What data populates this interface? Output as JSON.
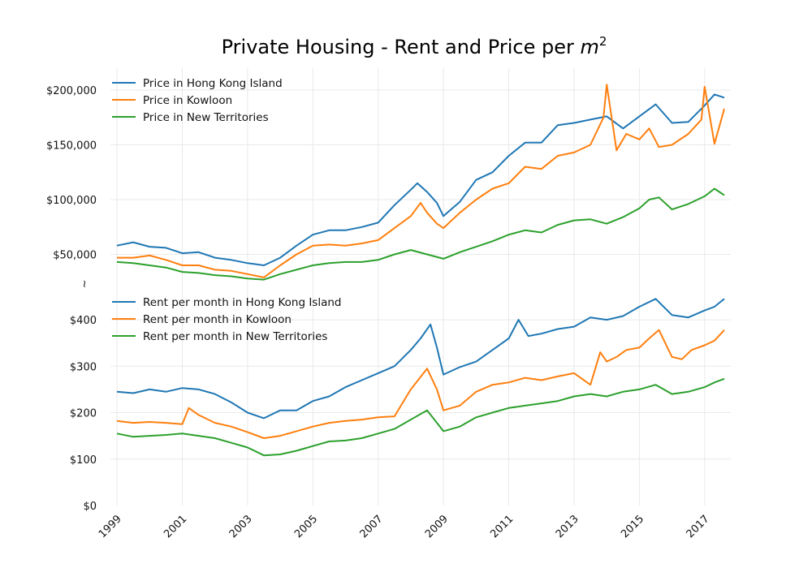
{
  "chart_data": {
    "type": "line",
    "title": "Private Housing - Rent and Price per m²",
    "title_main": "Private Housing - Rent and Price per ",
    "title_var": "m",
    "title_sup": "2",
    "axis_break_symbol": "≀",
    "xlim": [
      1998.8,
      2017.8
    ],
    "x_ticks": [
      {
        "value": 1999,
        "label": "1999"
      },
      {
        "value": 2001,
        "label": "2001"
      },
      {
        "value": 2003,
        "label": "2003"
      },
      {
        "value": 2005,
        "label": "2005"
      },
      {
        "value": 2007,
        "label": "2007"
      },
      {
        "value": 2009,
        "label": "2009"
      },
      {
        "value": 2011,
        "label": "2011"
      },
      {
        "value": 2013,
        "label": "2013"
      },
      {
        "value": 2015,
        "label": "2015"
      },
      {
        "value": 2017,
        "label": "2017"
      }
    ],
    "grid": true,
    "panels": [
      {
        "name": "price",
        "ylim": [
          20000,
          220000
        ],
        "y_ticks": [
          {
            "value": 50000,
            "label": "$50,000"
          },
          {
            "value": 100000,
            "label": "$100,000"
          },
          {
            "value": 150000,
            "label": "$150,000"
          },
          {
            "value": 200000,
            "label": "$200,000"
          }
        ],
        "legend_position": "top-left",
        "series": [
          {
            "name": "Price in Hong Kong Island",
            "color": "#1f77b4",
            "x": [
              1999.0,
              1999.5,
              2000.0,
              2000.5,
              2001.0,
              2001.5,
              2002.0,
              2002.5,
              2003.0,
              2003.5,
              2004.0,
              2004.5,
              2005.0,
              2005.5,
              2006.0,
              2006.5,
              2007.0,
              2007.5,
              2008.0,
              2008.2,
              2008.5,
              2008.8,
              2009.0,
              2009.5,
              2010.0,
              2010.5,
              2011.0,
              2011.5,
              2012.0,
              2012.5,
              2013.0,
              2013.5,
              2014.0,
              2014.5,
              2015.0,
              2015.5,
              2016.0,
              2016.5,
              2017.0,
              2017.3,
              2017.6
            ],
            "y": [
              58000,
              61000,
              57000,
              56000,
              51000,
              52000,
              47000,
              45000,
              42000,
              40000,
              47000,
              58000,
              68000,
              72000,
              72000,
              75000,
              79000,
              95000,
              109000,
              115000,
              107000,
              97000,
              85000,
              98000,
              118000,
              125000,
              140000,
              152000,
              152000,
              168000,
              170000,
              173000,
              176000,
              165000,
              176000,
              187000,
              170000,
              171000,
              186000,
              196000,
              193000
            ]
          },
          {
            "name": "Price in Kowloon",
            "color": "#ff7f0e",
            "x": [
              1999.0,
              1999.5,
              2000.0,
              2000.5,
              2001.0,
              2001.5,
              2002.0,
              2002.5,
              2003.0,
              2003.5,
              2004.0,
              2004.5,
              2005.0,
              2005.5,
              2006.0,
              2006.5,
              2007.0,
              2007.5,
              2008.0,
              2008.3,
              2008.5,
              2008.8,
              2009.0,
              2009.5,
              2010.0,
              2010.5,
              2011.0,
              2011.5,
              2012.0,
              2012.5,
              2013.0,
              2013.5,
              2013.9,
              2014.0,
              2014.3,
              2014.6,
              2015.0,
              2015.3,
              2015.6,
              2016.0,
              2016.5,
              2016.9,
              2017.0,
              2017.3,
              2017.6
            ],
            "y": [
              47000,
              47000,
              49000,
              45000,
              40000,
              40000,
              36000,
              35000,
              32000,
              29000,
              40000,
              50000,
              58000,
              59000,
              58000,
              60000,
              63000,
              74000,
              85000,
              97000,
              88000,
              78000,
              74000,
              88000,
              100000,
              110000,
              115000,
              130000,
              128000,
              140000,
              143000,
              150000,
              175000,
              205000,
              145000,
              160000,
              155000,
              165000,
              148000,
              150000,
              160000,
              173000,
              203000,
              151000,
              183000
            ]
          },
          {
            "name": "Price in New Territories",
            "color": "#2ca02c",
            "x": [
              1999.0,
              1999.5,
              2000.0,
              2000.5,
              2001.0,
              2001.5,
              2002.0,
              2002.5,
              2003.0,
              2003.5,
              2004.0,
              2004.5,
              2005.0,
              2005.5,
              2006.0,
              2006.5,
              2007.0,
              2007.5,
              2008.0,
              2008.5,
              2009.0,
              2009.5,
              2010.0,
              2010.5,
              2011.0,
              2011.5,
              2012.0,
              2012.5,
              2013.0,
              2013.5,
              2014.0,
              2014.5,
              2015.0,
              2015.3,
              2015.6,
              2016.0,
              2016.5,
              2017.0,
              2017.3,
              2017.6
            ],
            "y": [
              43000,
              42000,
              40000,
              38000,
              34000,
              33000,
              31000,
              30000,
              28000,
              27000,
              32000,
              36000,
              40000,
              42000,
              43000,
              43000,
              45000,
              50000,
              54000,
              50000,
              46000,
              52000,
              57000,
              62000,
              68000,
              72000,
              70000,
              77000,
              81000,
              82000,
              78000,
              84000,
              92000,
              100000,
              102000,
              91000,
              96000,
              103000,
              110000,
              104000
            ]
          }
        ]
      },
      {
        "name": "rent",
        "ylim": [
          0,
          470
        ],
        "y_ticks": [
          {
            "value": 0,
            "label": "$0"
          },
          {
            "value": 100,
            "label": "$100"
          },
          {
            "value": 200,
            "label": "$200"
          },
          {
            "value": 300,
            "label": "$300"
          },
          {
            "value": 400,
            "label": "$400"
          }
        ],
        "legend_position": "top-left",
        "series": [
          {
            "name": "Rent per month in Hong Kong Island",
            "color": "#1f77b4",
            "x": [
              1999.0,
              1999.5,
              2000.0,
              2000.5,
              2001.0,
              2001.5,
              2002.0,
              2002.5,
              2003.0,
              2003.5,
              2004.0,
              2004.5,
              2005.0,
              2005.5,
              2006.0,
              2006.5,
              2007.0,
              2007.5,
              2008.0,
              2008.3,
              2008.6,
              2008.8,
              2009.0,
              2009.5,
              2010.0,
              2010.5,
              2011.0,
              2011.3,
              2011.6,
              2012.0,
              2012.5,
              2013.0,
              2013.5,
              2014.0,
              2014.5,
              2015.0,
              2015.5,
              2016.0,
              2016.5,
              2017.0,
              2017.3,
              2017.6
            ],
            "y": [
              245,
              242,
              250,
              245,
              253,
              250,
              240,
              222,
              200,
              188,
              205,
              205,
              225,
              235,
              255,
              270,
              285,
              300,
              335,
              360,
              390,
              340,
              282,
              298,
              310,
              335,
              360,
              400,
              365,
              370,
              380,
              385,
              405,
              400,
              408,
              428,
              445,
              410,
              405,
              420,
              428,
              445
            ]
          },
          {
            "name": "Rent per month in Kowloon",
            "color": "#ff7f0e",
            "x": [
              1999.0,
              1999.5,
              2000.0,
              2000.5,
              2001.0,
              2001.2,
              2001.5,
              2002.0,
              2002.5,
              2003.0,
              2003.5,
              2004.0,
              2004.5,
              2005.0,
              2005.5,
              2006.0,
              2006.5,
              2007.0,
              2007.5,
              2008.0,
              2008.5,
              2008.8,
              2009.0,
              2009.5,
              2010.0,
              2010.5,
              2011.0,
              2011.5,
              2012.0,
              2012.5,
              2013.0,
              2013.5,
              2013.8,
              2014.0,
              2014.3,
              2014.6,
              2015.0,
              2015.3,
              2015.6,
              2016.0,
              2016.3,
              2016.6,
              2017.0,
              2017.3,
              2017.6
            ],
            "y": [
              182,
              178,
              180,
              178,
              175,
              210,
              195,
              178,
              170,
              158,
              145,
              150,
              160,
              170,
              178,
              182,
              185,
              190,
              192,
              250,
              295,
              250,
              205,
              215,
              245,
              260,
              265,
              275,
              270,
              278,
              285,
              260,
              330,
              310,
              320,
              335,
              340,
              360,
              378,
              320,
              315,
              335,
              345,
              355,
              378
            ]
          },
          {
            "name": "Rent per month in New Territories",
            "color": "#2ca02c",
            "x": [
              1999.0,
              1999.5,
              2000.0,
              2000.5,
              2001.0,
              2001.5,
              2002.0,
              2002.5,
              2003.0,
              2003.5,
              2004.0,
              2004.5,
              2005.0,
              2005.5,
              2006.0,
              2006.5,
              2007.0,
              2007.5,
              2008.0,
              2008.5,
              2009.0,
              2009.5,
              2010.0,
              2010.5,
              2011.0,
              2011.5,
              2012.0,
              2012.5,
              2013.0,
              2013.5,
              2014.0,
              2014.5,
              2015.0,
              2015.5,
              2016.0,
              2016.5,
              2017.0,
              2017.3,
              2017.6
            ],
            "y": [
              155,
              148,
              150,
              152,
              155,
              150,
              145,
              135,
              125,
              108,
              110,
              118,
              128,
              138,
              140,
              145,
              155,
              165,
              185,
              205,
              160,
              170,
              190,
              200,
              210,
              215,
              220,
              225,
              235,
              240,
              235,
              245,
              250,
              260,
              240,
              245,
              255,
              265,
              273
            ]
          }
        ]
      }
    ]
  }
}
